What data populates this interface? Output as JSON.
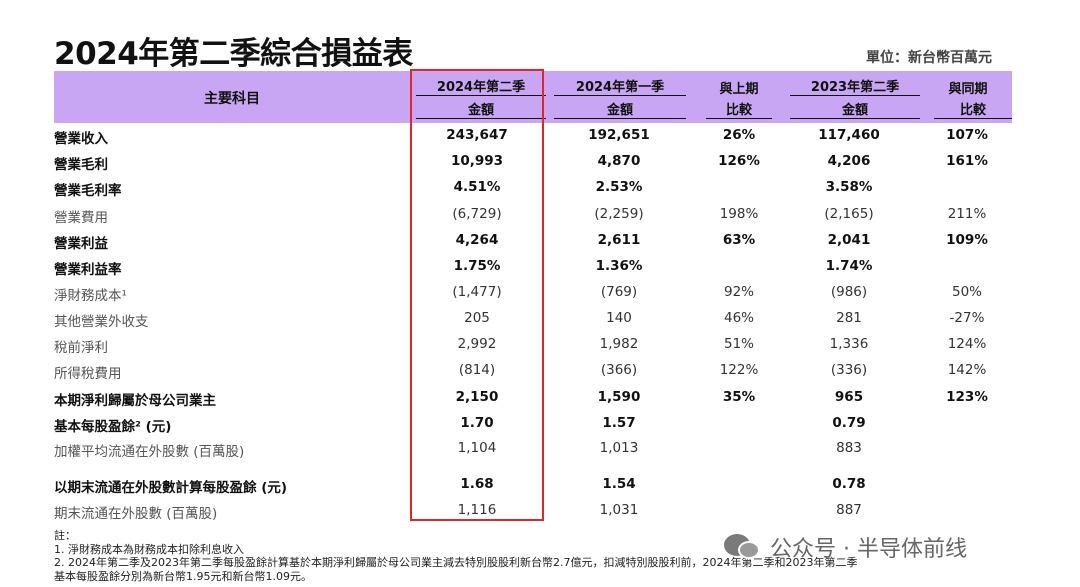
{
  "title": "2024年第二季綜合損益表",
  "unit": "單位：新台幣百萬元",
  "header": {
    "main": "主要科目",
    "q2_2024_top": "2024年第二季",
    "q2_2024_bot": "金額",
    "q1_2024_top": "2024年第一季",
    "q1_2024_bot": "金額",
    "qoq_top": "與上期",
    "qoq_bot": "比較",
    "q2_2023_top": "2023年第二季",
    "q2_2023_bot": "金額",
    "yoy_top": "與同期",
    "yoy_bot": "比較"
  },
  "rows": [
    {
      "label": "營業收入",
      "c1": "243,647",
      "c2": "192,651",
      "c3": "26%",
      "c4": "117,460",
      "c5": "107%"
    },
    {
      "label": "營業毛利",
      "c1": "10,993",
      "c2": "4,870",
      "c3": "126%",
      "c4": "4,206",
      "c5": "161%"
    },
    {
      "label": "營業毛利率",
      "c1": "4.51%",
      "c2": "2.53%",
      "c3": "",
      "c4": "3.58%",
      "c5": ""
    },
    {
      "label": "營業費用",
      "c1": "(6,729)",
      "c2": "(2,259)",
      "c3": "198%",
      "c4": "(2,165)",
      "c5": "211%"
    },
    {
      "label": "營業利益",
      "c1": "4,264",
      "c2": "2,611",
      "c3": "63%",
      "c4": "2,041",
      "c5": "109%"
    },
    {
      "label": "營業利益率",
      "c1": "1.75%",
      "c2": "1.36%",
      "c3": "",
      "c4": "1.74%",
      "c5": ""
    },
    {
      "label": "淨財務成本¹",
      "c1": "(1,477)",
      "c2": "(769)",
      "c3": "92%",
      "c4": "(986)",
      "c5": "50%"
    },
    {
      "label": "其他營業外收支",
      "c1": "205",
      "c2": "140",
      "c3": "46%",
      "c4": "281",
      "c5": "-27%"
    },
    {
      "label": "稅前淨利",
      "c1": "2,992",
      "c2": "1,982",
      "c3": "51%",
      "c4": "1,336",
      "c5": "124%"
    },
    {
      "label": "所得稅費用",
      "c1": "(814)",
      "c2": "(366)",
      "c3": "122%",
      "c4": "(336)",
      "c5": "142%"
    },
    {
      "label": "本期淨利歸屬於母公司業主",
      "c1": "2,150",
      "c2": "1,590",
      "c3": "35%",
      "c4": "965",
      "c5": "123%"
    },
    {
      "label": "基本每股盈餘² (元)",
      "c1": "1.70",
      "c2": "1.57",
      "c3": "",
      "c4": "0.79",
      "c5": ""
    },
    {
      "label": "加權平均流通在外股數 (百萬股)",
      "c1": "1,104",
      "c2": "1,013",
      "c3": "",
      "c4": "883",
      "c5": ""
    },
    {
      "label": "以期末流通在外股數計算每股盈餘 (元)",
      "c1": "1.68",
      "c2": "1.54",
      "c3": "",
      "c4": "0.78",
      "c5": ""
    },
    {
      "label": "期末流通在外股數 (百萬股)",
      "c1": "1,116",
      "c2": "1,031",
      "c3": "",
      "c4": "887",
      "c5": ""
    }
  ],
  "notes": {
    "heading": "註：",
    "n1": "1.  淨財務成本為財務成本扣除利息收入",
    "n2": "2.  2024年第二季及2023年第二季每股盈餘計算基於本期淨利歸屬於母公司業主減去特別股股利新台幣2.7億元，扣減特別股股利前，2024年第二季和2023年第二季",
    "n3": "     基本每股盈餘分別為新台幣1.95元和新台幣1.09元。"
  },
  "watermark": "公众号 · 半导体前线"
}
